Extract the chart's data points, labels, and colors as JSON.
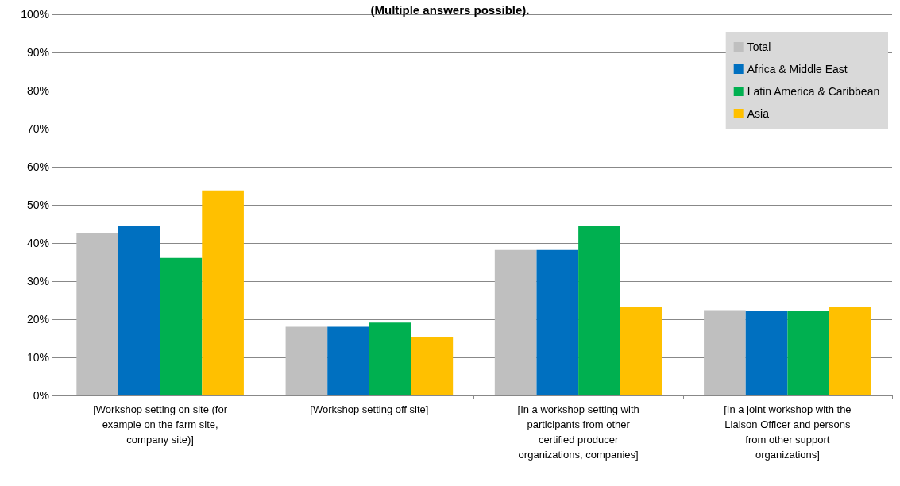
{
  "chart_data": {
    "type": "bar",
    "title": "(Multiple answers possible).",
    "categories": [
      "[Workshop setting on site (for example on the farm site, company site)]",
      "[Workshop setting off site]",
      "[In a workshop setting with participants from other certified producer organizations, companies]",
      "[In a joint workshop with the Liaison Officer and persons from other support organizations]"
    ],
    "series": [
      {
        "name": "Total",
        "color": "#bfbfbf",
        "values": [
          42.6,
          18.0,
          38.2,
          22.4
        ]
      },
      {
        "name": "Africa & Middle East",
        "color": "#0070c0",
        "values": [
          44.6,
          18.0,
          38.2,
          22.2
        ]
      },
      {
        "name": "Latin America & Caribbean",
        "color": "#00b050",
        "values": [
          36.1,
          19.1,
          44.6,
          22.2
        ]
      },
      {
        "name": "Asia",
        "color": "#ffc000",
        "values": [
          53.8,
          15.4,
          23.1,
          23.1
        ]
      }
    ],
    "ylim": [
      0,
      100
    ],
    "yticks": [
      {
        "value": 0,
        "label": "0%"
      },
      {
        "value": 10,
        "label": "10%"
      },
      {
        "value": 20,
        "label": "20%"
      },
      {
        "value": 30,
        "label": "30%"
      },
      {
        "value": 40,
        "label": "40%"
      },
      {
        "value": 50,
        "label": "50%"
      },
      {
        "value": 60,
        "label": "60%"
      },
      {
        "value": 70,
        "label": "70%"
      },
      {
        "value": 80,
        "label": "80%"
      },
      {
        "value": 90,
        "label": "90%"
      },
      {
        "value": 100,
        "label": "100%"
      }
    ],
    "grid": "y",
    "legend": "top right"
  }
}
